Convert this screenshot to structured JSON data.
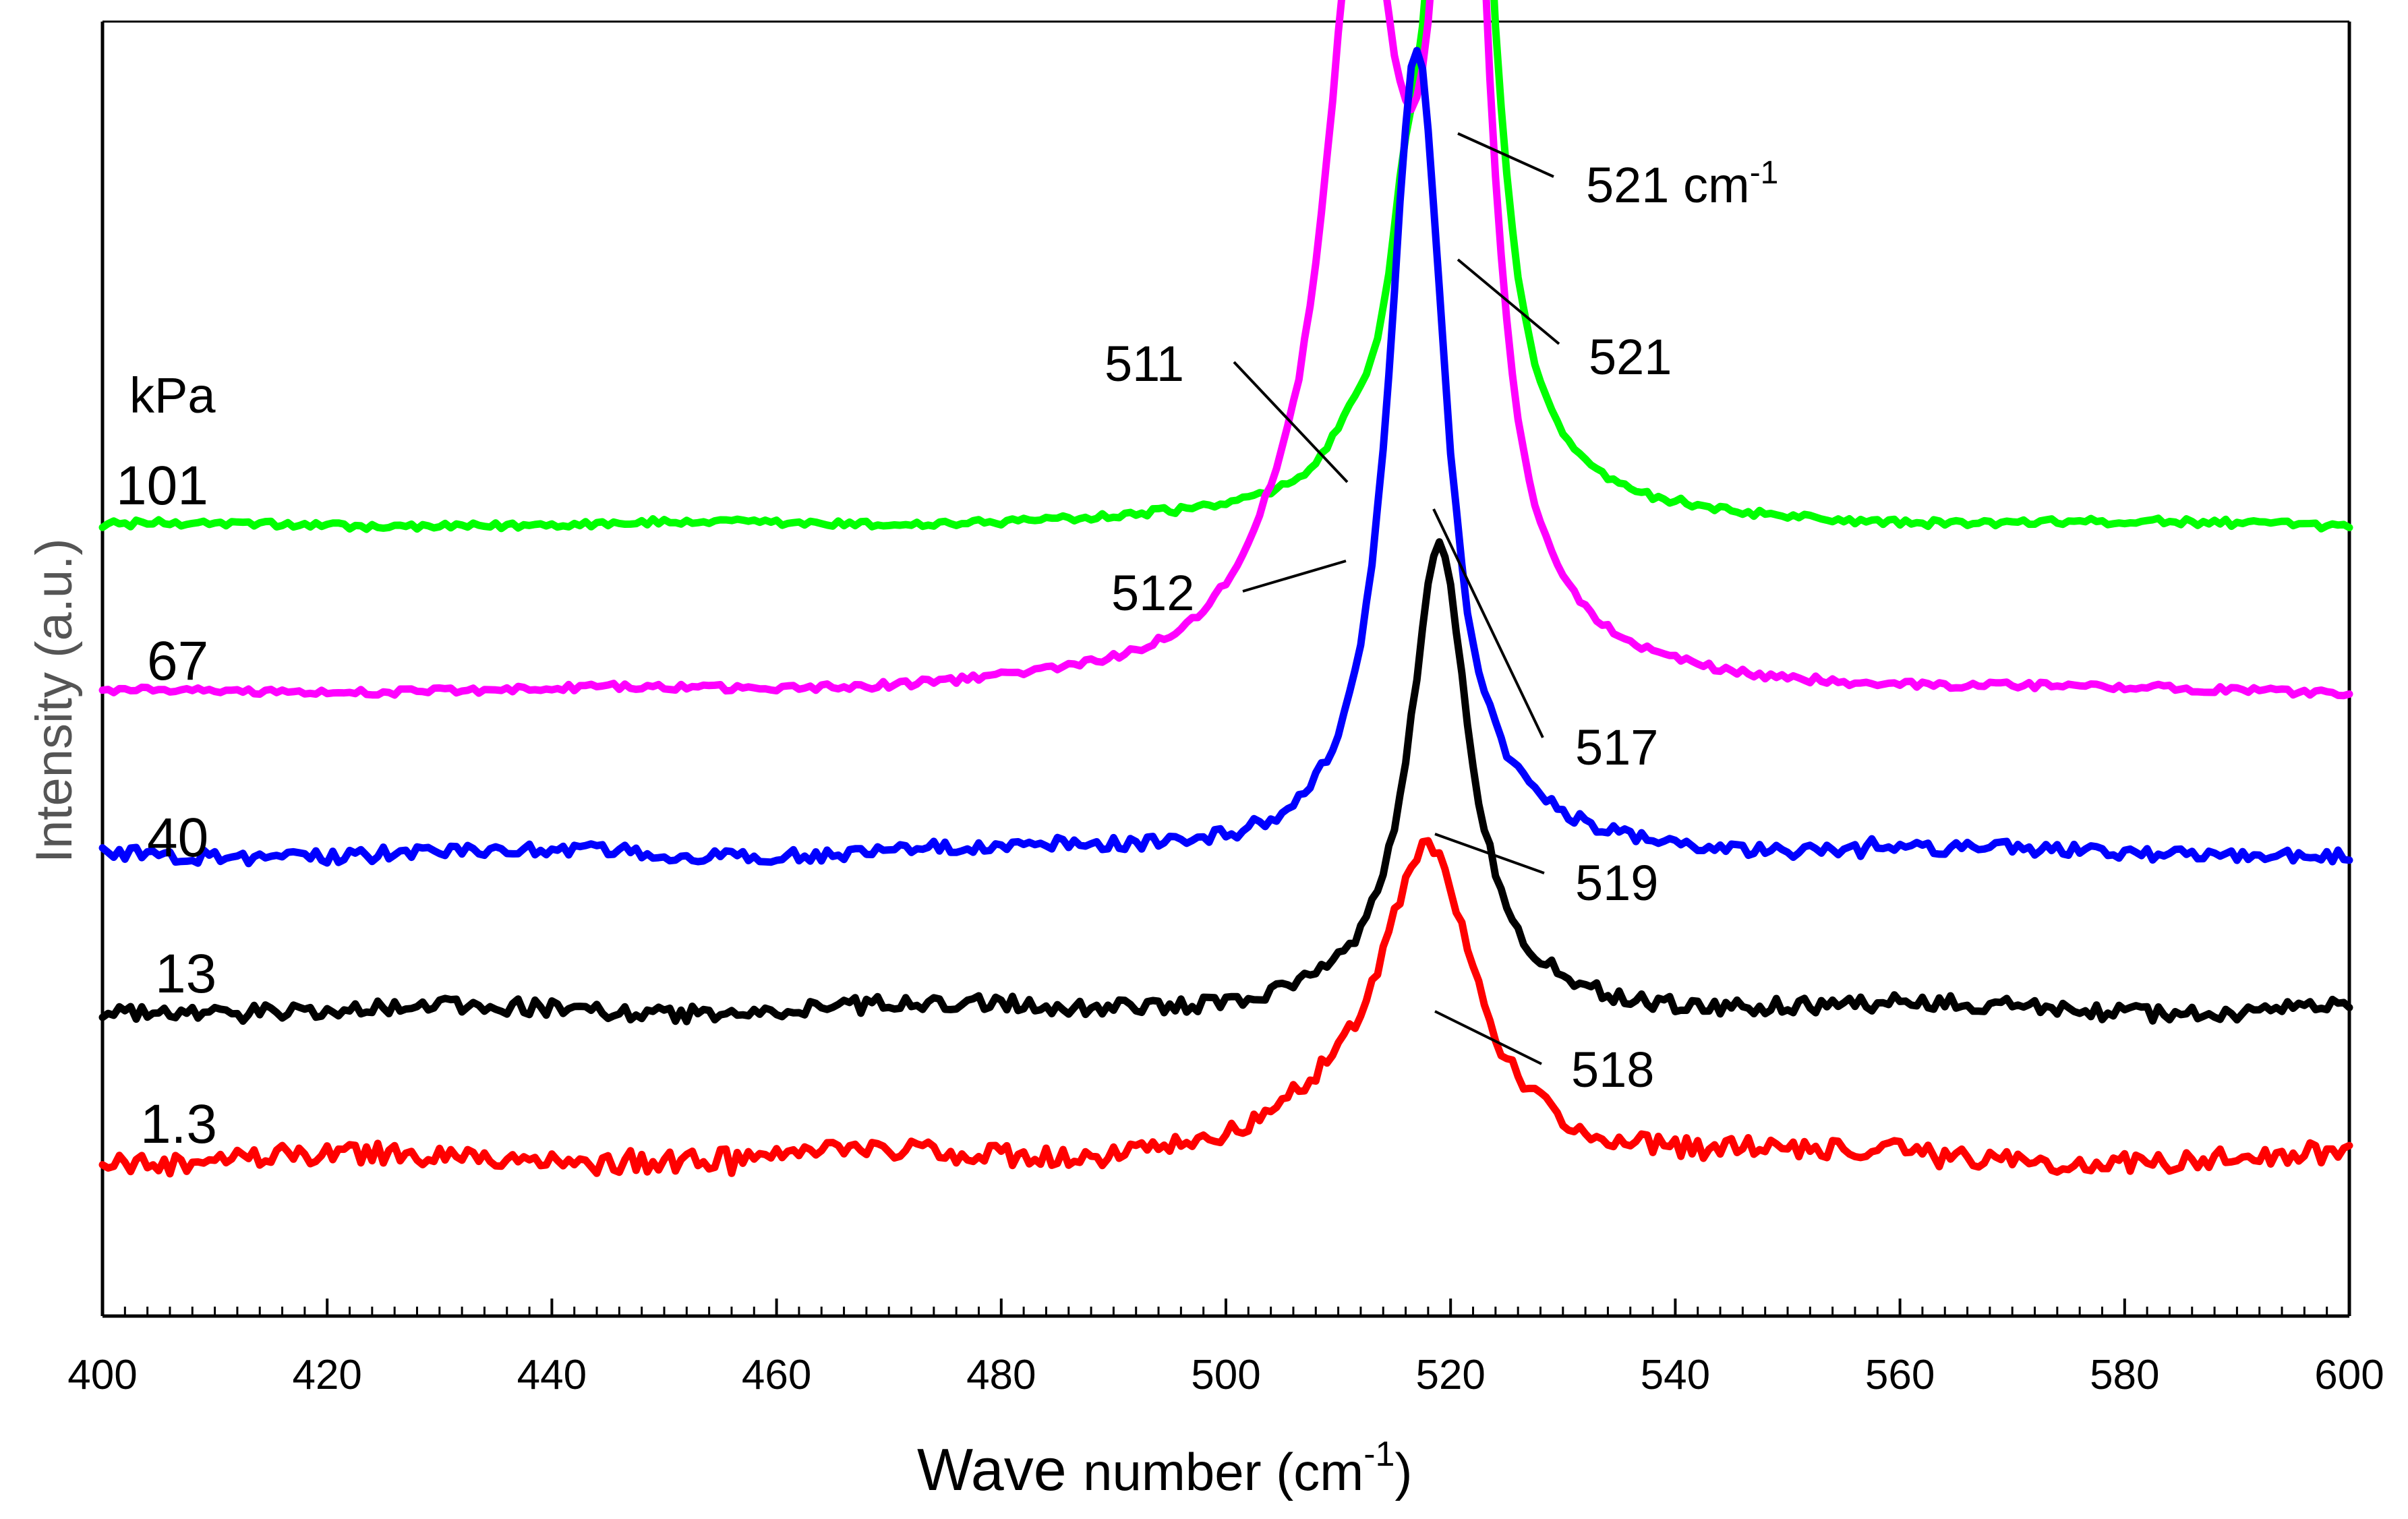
{
  "chart_data": {
    "type": "line",
    "title": "",
    "xlabel": {
      "word1": "Wave",
      "word2": "number (cm",
      "sup": "-1",
      "close": ")"
    },
    "ylabel": "Intensity (a.u.)",
    "xlim": [
      400,
      600
    ],
    "ylim": [
      0,
      1
    ],
    "xticks": [
      400,
      420,
      440,
      460,
      480,
      500,
      520,
      540,
      560,
      580,
      600
    ],
    "legend_header": "kPa",
    "series": [
      {
        "name": "101",
        "color": "#00ff00",
        "baseline": 0.655,
        "peaks": [
          {
            "x": 521,
            "y": 1.0,
            "w": 2.6
          },
          {
            "x": 511,
            "y": 0.025,
            "w": 2.5
          },
          {
            "x": 516,
            "y": 0.12,
            "w": 2.0
          }
        ],
        "noise": 0.003
      },
      {
        "name": "67",
        "color": "#ff00ff",
        "baseline": 0.51,
        "peaks": [
          {
            "x": 521,
            "y": 0.89,
            "w": 2.6
          },
          {
            "x": 512,
            "y": 0.64,
            "w": 4.0
          },
          {
            "x": 504,
            "y": 0.035,
            "w": 4.5
          }
        ],
        "noise": 0.003
      },
      {
        "name": "40",
        "color": "#0000ff",
        "baseline": 0.37,
        "peaks": [
          {
            "x": 517,
            "y": 0.7,
            "w": 3.0
          }
        ],
        "noise": 0.006
      },
      {
        "name": "13",
        "color": "#000000",
        "baseline": 0.235,
        "peaks": [
          {
            "x": 519,
            "y": 0.4,
            "w": 3.2
          }
        ],
        "noise": 0.007
      },
      {
        "name": "1.3",
        "color": "#ff0000",
        "baseline": 0.105,
        "peaks": [
          {
            "x": 518,
            "y": 0.265,
            "w": 5.0
          },
          {
            "x": 510,
            "y": 0.02,
            "w": 6.0
          }
        ],
        "noise": 0.009
      }
    ],
    "annotations": [
      {
        "text": "521",
        "unit": "cm",
        "sup": "-1",
        "point_x": 521,
        "point_y": 1.0
      },
      {
        "text": "521",
        "unit": "",
        "sup": "",
        "point_x": 521,
        "point_y": 0.89
      },
      {
        "text": "511",
        "unit": "",
        "sup": "",
        "point_x": 511,
        "point_y": 0.68
      },
      {
        "text": "512",
        "unit": "",
        "sup": "",
        "point_x": 512,
        "point_y": 0.64
      },
      {
        "text": "517",
        "unit": "",
        "sup": "",
        "point_x": 517,
        "point_y": 0.7
      },
      {
        "text": "519",
        "unit": "",
        "sup": "",
        "point_x": 519,
        "point_y": 0.4
      },
      {
        "text": "518",
        "unit": "",
        "sup": "",
        "point_x": 518,
        "point_y": 0.265
      }
    ]
  }
}
